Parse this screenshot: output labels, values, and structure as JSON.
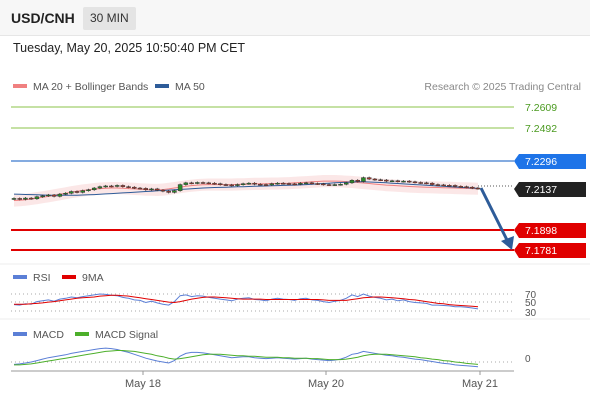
{
  "header": {
    "symbol": "USD/CNH",
    "timeframe": "30 MIN",
    "datetime": "Tuesday, May 20, 2025 10:50:40 PM CET"
  },
  "legend": {
    "ma20_label": "MA 20 + Bollinger Bands",
    "ma50_label": "MA 50",
    "credit": "Research © 2025 Trading Central",
    "ma20_color": "#f08080",
    "ma50_color": "#2e5c99"
  },
  "colors": {
    "resistance": "#8bc34a",
    "pivot": "#1e74e8",
    "support": "#e00000",
    "price_tag": "#222222",
    "arrow": "#2e5c99",
    "candle_up": "#2a8a2a",
    "candle_down": "#c0392b"
  },
  "levels": {
    "r2": "7.2609",
    "r1": "7.2492",
    "pivot": "7.2296",
    "last": "7.2137",
    "s1": "7.1898",
    "s2": "7.1781"
  },
  "rsi": {
    "label": "RSI",
    "ma_label": "9MA",
    "ticks": [
      "70",
      "50",
      "30"
    ]
  },
  "macd": {
    "label": "MACD",
    "signal_label": "MACD Signal",
    "ticks": [
      "0"
    ]
  },
  "xaxis": {
    "ticks": [
      "May 18",
      "May 20",
      "May 21"
    ]
  },
  "chart_data": {
    "type": "line",
    "ylim": [
      7.172,
      7.266
    ],
    "close": [
      7.208,
      7.2075,
      7.2082,
      7.2078,
      7.209,
      7.2095,
      7.21,
      7.2092,
      7.2105,
      7.211,
      7.212,
      7.2115,
      7.2125,
      7.213,
      7.214,
      7.2148,
      7.2152,
      7.215,
      7.2155,
      7.2148,
      7.2145,
      7.214,
      7.2138,
      7.213,
      7.2135,
      7.2128,
      7.2122,
      7.2115,
      7.2125,
      7.216,
      7.217,
      7.2168,
      7.2172,
      7.217,
      7.2168,
      7.2165,
      7.216,
      7.2158,
      7.2155,
      7.216,
      7.2165,
      7.2168,
      7.2162,
      7.216,
      7.2158,
      7.2165,
      7.2168,
      7.2166,
      7.2164,
      7.2162,
      7.2168,
      7.217,
      7.2166,
      7.2164,
      7.216,
      7.2158,
      7.216,
      7.2162,
      7.217,
      7.2185,
      7.2178,
      7.22,
      7.2192,
      7.2188,
      7.2186,
      7.218,
      7.2182,
      7.2178,
      7.218,
      7.2176,
      7.2172,
      7.217,
      7.2168,
      7.216,
      7.2158,
      7.2156,
      7.2155,
      7.215,
      7.2148,
      7.2145,
      7.214,
      7.2137
    ],
    "ma20": [
      7.2068,
      7.207,
      7.2073,
      7.2077,
      7.2082,
      7.2087,
      7.2092,
      7.2098,
      7.2104,
      7.211,
      7.2116,
      7.2121,
      7.2126,
      7.213,
      7.2134,
      7.2137,
      7.2139,
      7.214,
      7.214,
      7.2139,
      7.2137,
      7.2135,
      7.2133,
      7.2131,
      7.213,
      7.2129,
      7.2131,
      7.2135,
      7.214,
      7.2145,
      7.215,
      7.2154,
      7.2157,
      7.2159,
      7.216,
      7.216,
      7.216,
      7.216,
      7.216,
      7.2161,
      7.2162,
      7.2163,
      7.2164,
      7.2164,
      7.2165,
      7.2166,
      7.2166,
      7.2167,
      7.2168,
      7.217,
      7.2172,
      7.2174,
      7.2176,
      7.2178,
      7.218,
      7.218,
      7.218,
      7.2179,
      7.2177,
      7.2175,
      7.2172,
      7.2169,
      7.2166,
      7.2163,
      7.216,
      7.2157,
      7.2155,
      7.2153,
      7.2151,
      7.2149,
      7.2147,
      7.2146,
      7.2145,
      7.2144,
      7.2143,
      7.2142,
      7.2141,
      7.214,
      7.2139,
      7.2138,
      7.2137,
      7.2136
    ],
    "ma50": [
      7.2105,
      7.2104,
      7.2103,
      7.2102,
      7.2101,
      7.21,
      7.2099,
      7.2099,
      7.2098,
      7.2098,
      7.2098,
      7.2099,
      7.21,
      7.2101,
      7.2102,
      7.2104,
      7.2106,
      7.2108,
      7.211,
      7.2112,
      7.2114,
      7.2116,
      7.2118,
      7.212,
      7.2122,
      7.2124,
      7.2126,
      7.2128,
      7.213,
      7.2132,
      7.2134,
      7.2136,
      7.2138,
      7.214,
      7.2142,
      7.2143,
      7.2144,
      7.2145,
      7.2146,
      7.2147,
      7.2148,
      7.2149,
      7.215,
      7.2151,
      7.2152,
      7.2153,
      7.2154,
      7.2155,
      7.2156,
      7.2157,
      7.2158,
      7.216,
      7.2162,
      7.2164,
      7.2166,
      7.2168,
      7.217,
      7.2172,
      7.2174,
      7.2175,
      7.2176,
      7.2176,
      7.2175,
      7.2174,
      7.2172,
      7.217,
      7.2168,
      7.2166,
      7.2164,
      7.2162,
      7.216,
      7.2158,
      7.2156,
      7.2154,
      7.2152,
      7.215,
      7.2148,
      7.2146,
      7.2144,
      7.2142,
      7.214,
      7.2138
    ],
    "bb_width": 0.0035,
    "rsi_values": [
      45,
      44,
      47,
      46,
      52,
      54,
      56,
      53,
      58,
      60,
      63,
      61,
      64,
      66,
      68,
      70,
      69,
      67,
      66,
      62,
      60,
      56,
      55,
      50,
      53,
      49,
      46,
      44,
      52,
      66,
      68,
      64,
      66,
      65,
      62,
      60,
      58,
      56,
      54,
      58,
      60,
      61,
      57,
      56,
      54,
      58,
      60,
      58,
      57,
      55,
      59,
      60,
      56,
      55,
      52,
      50,
      53,
      55,
      60,
      68,
      64,
      70,
      65,
      62,
      60,
      56,
      58,
      54,
      56,
      52,
      50,
      49,
      48,
      44,
      44,
      43,
      42,
      40,
      40,
      39,
      37,
      35
    ],
    "rsi_ma_values": [
      46,
      46,
      46,
      47,
      48,
      49,
      51,
      52,
      54,
      56,
      58,
      60,
      61,
      62,
      63,
      65,
      66,
      67,
      67,
      66,
      65,
      63,
      61,
      59,
      57,
      55,
      53,
      51,
      50,
      52,
      55,
      58,
      60,
      62,
      63,
      63,
      62,
      61,
      60,
      59,
      58,
      58,
      58,
      58,
      57,
      57,
      57,
      57,
      57,
      57,
      57,
      57,
      57,
      57,
      56,
      55,
      55,
      55,
      55,
      57,
      59,
      61,
      62,
      63,
      63,
      62,
      61,
      60,
      59,
      57,
      56,
      54,
      52,
      50,
      48,
      47,
      45,
      44,
      43,
      42,
      41,
      40
    ],
    "macd_values": [
      -0.5,
      -0.4,
      -0.2,
      0.0,
      0.3,
      0.6,
      0.9,
      1.1,
      1.3,
      1.5,
      1.8,
      2.0,
      2.2,
      2.4,
      2.6,
      2.8,
      2.9,
      2.8,
      2.6,
      2.3,
      2.0,
      1.6,
      1.2,
      0.8,
      0.5,
      0.2,
      0.0,
      -0.2,
      0.3,
      1.2,
      1.8,
      2.0,
      2.0,
      1.9,
      1.7,
      1.5,
      1.3,
      1.1,
      0.9,
      1.0,
      1.1,
      1.1,
      0.9,
      0.8,
      0.7,
      0.8,
      0.9,
      0.8,
      0.7,
      0.6,
      0.7,
      0.8,
      0.6,
      0.5,
      0.4,
      0.3,
      0.4,
      0.6,
      1.0,
      1.6,
      1.8,
      2.2,
      2.0,
      1.8,
      1.6,
      1.4,
      1.3,
      1.1,
      1.0,
      0.8,
      0.6,
      0.5,
      0.3,
      0.1,
      -0.1,
      -0.3,
      -0.4,
      -0.6,
      -0.7,
      -0.8,
      -0.9,
      -1.0
    ],
    "macd_signal_values": [
      -0.6,
      -0.6,
      -0.5,
      -0.4,
      -0.2,
      0.0,
      0.2,
      0.4,
      0.6,
      0.8,
      1.0,
      1.2,
      1.4,
      1.6,
      1.8,
      2.0,
      2.2,
      2.3,
      2.4,
      2.4,
      2.3,
      2.2,
      2.0,
      1.8,
      1.6,
      1.3,
      1.1,
      0.8,
      0.6,
      0.7,
      0.9,
      1.1,
      1.3,
      1.5,
      1.6,
      1.6,
      1.6,
      1.5,
      1.4,
      1.3,
      1.3,
      1.2,
      1.2,
      1.1,
      1.0,
      1.0,
      1.0,
      0.9,
      0.9,
      0.8,
      0.8,
      0.8,
      0.7,
      0.7,
      0.6,
      0.5,
      0.5,
      0.5,
      0.6,
      0.8,
      1.0,
      1.3,
      1.5,
      1.6,
      1.6,
      1.6,
      1.5,
      1.4,
      1.3,
      1.2,
      1.1,
      0.9,
      0.8,
      0.6,
      0.5,
      0.3,
      0.2,
      0.0,
      -0.1,
      -0.3,
      -0.4,
      -0.5
    ]
  }
}
